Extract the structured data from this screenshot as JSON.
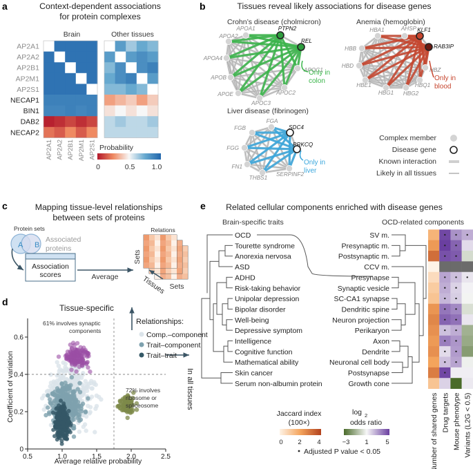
{
  "panels": {
    "a": {
      "label": "a",
      "title": [
        "Context-dependent associations",
        "for protein complexes"
      ],
      "brain_header": "Brain",
      "other_header": "Other tissues",
      "rows": [
        "AP2A1",
        "AP2A2",
        "AP2B1",
        "AP2M1",
        "AP2S1",
        "NECAP1",
        "BIN1",
        "DAB2",
        "NECAP2"
      ],
      "cols": [
        "AP2A1",
        "AP2A2",
        "AP2B1",
        "AP2M1",
        "AP2S1"
      ],
      "legend_title": "Probability",
      "legend_ticks": [
        "0",
        "0.5",
        "1.0"
      ]
    },
    "b": {
      "label": "b",
      "title": "Tissues reveal likely associations for disease genes",
      "legend": {
        "complex_member": "Complex member",
        "disease_gene": "Disease gene",
        "known": "Known interaction",
        "likely": "Likely in all tissues"
      }
    },
    "c": {
      "label": "c",
      "title": [
        "Mapping tissue-level relationships",
        "between sets of proteins"
      ],
      "protein_sets": "Protein sets",
      "node_a": "A",
      "node_b": "B",
      "associated": [
        "Associated",
        "proteins"
      ],
      "box": [
        "Association",
        "scores"
      ],
      "average": "Average",
      "relations": "Relations",
      "sets_v": "Sets",
      "sets_h": "Sets",
      "tissues": "Tissues"
    },
    "d": {
      "label": "d",
      "tissue_specific": "Tissue-specific",
      "annotation_top": [
        "61% involves synaptic",
        "components"
      ],
      "annotation_right": [
        "72% involves",
        "ribosome or",
        "spliceosome"
      ],
      "relationships_title": "Relationships:",
      "series": [
        "Comp.–component",
        "Trait–component",
        "Trait–trait"
      ],
      "x_label": "Average relative probability",
      "y_label": "Coefficient of variation",
      "x_ticks": [
        "0.5",
        "1.0",
        "1.5",
        "2.0",
        "2.5"
      ],
      "y_ticks": [
        "0",
        "0.2",
        "0.4",
        "0.6"
      ],
      "in_all_tissues": "In all tissues"
    },
    "e": {
      "label": "e",
      "title": "Related cellular components enriched with disease genes",
      "left_header": "Brain-specific traits",
      "right_header": "OCD-related components",
      "traits": [
        "OCD",
        "Tourette syndrome",
        "Anorexia nervosa",
        "ASD",
        "ADHD",
        "Risk-taking behavior",
        "Unipolar depression",
        "Bipolar disorder",
        "Well-being",
        "Depressive symptom",
        "Intelligence",
        "Cognitive function",
        "Mathematical ability",
        "Skin cancer",
        "Serum non-albumin protein"
      ],
      "components": [
        "SV m.",
        "Presynaptic m.",
        "Postsynaptic m.",
        "CCV m.",
        "Presynapse",
        "Synaptic vesicle",
        "SC-CA1 synapse",
        "Dendritic spine",
        "Neuron projection",
        "Perikaryon",
        "Axon",
        "Dendrite",
        "Neuronal cell body",
        "Postsynapse",
        "Growth cone"
      ],
      "col_labels": [
        "Number of shared genes",
        "Drug targets",
        "Mouse phenotype",
        "Variants (L2G < 0.5)"
      ],
      "jaccard_title": [
        "Jaccard index",
        "(100×)"
      ],
      "jaccard_ticks": [
        "0",
        "2",
        "4"
      ],
      "odds_title": [
        "log",
        "2",
        "odds ratio"
      ],
      "odds_ticks": [
        "−3",
        "1",
        "5"
      ],
      "note": "Adjusted P value < 0.05"
    }
  },
  "colors": {
    "known": "#cfcfcf",
    "crohn": "#3ab54a",
    "anemia": "#c6452e",
    "liver": "#3aa7dd",
    "comp": "#dbe4ea",
    "trait_comp": "#7ea1ae",
    "trait_trait": "#345866",
    "purple": "#9b4ea5",
    "olive": "#7e8a4a"
  },
  "chart_data": [
    {
      "type": "heatmap",
      "title": "Context-dependent associations for protein complexes",
      "rows": [
        "AP2A1",
        "AP2A2",
        "AP2B1",
        "AP2M1",
        "AP2S1",
        "NECAP1",
        "BIN1",
        "DAB2",
        "NECAP2"
      ],
      "cols": [
        "AP2A1",
        "AP2A2",
        "AP2B1",
        "AP2M1",
        "AP2S1"
      ],
      "groups": [
        "Brain",
        "Other tissues"
      ],
      "values_brain": [
        [
          null,
          0.95,
          0.95,
          0.95,
          0.95
        ],
        [
          0.95,
          null,
          0.95,
          0.95,
          0.95
        ],
        [
          0.95,
          0.95,
          null,
          0.95,
          0.95
        ],
        [
          0.95,
          0.95,
          0.95,
          null,
          0.95
        ],
        [
          0.95,
          0.95,
          0.95,
          0.95,
          null
        ],
        [
          0.9,
          0.9,
          0.9,
          0.9,
          0.9
        ],
        [
          0.88,
          0.88,
          0.9,
          0.88,
          0.9
        ],
        [
          0.02,
          0.05,
          0.1,
          0.05,
          0.1
        ],
        [
          0.2,
          0.15,
          0.25,
          0.15,
          0.25
        ]
      ],
      "values_other": [
        [
          null,
          0.8,
          0.65,
          0.75,
          0.7
        ],
        [
          0.8,
          null,
          0.8,
          0.85,
          0.8
        ],
        [
          0.7,
          0.85,
          null,
          0.85,
          0.9
        ],
        [
          0.75,
          0.85,
          0.9,
          null,
          0.8
        ],
        [
          0.7,
          0.7,
          0.75,
          0.7,
          null
        ],
        [
          0.3,
          0.35,
          0.4,
          0.3,
          0.4
        ],
        [
          0.45,
          0.5,
          0.45,
          0.5,
          0.45
        ],
        [
          0.6,
          0.65,
          0.6,
          0.6,
          0.65
        ],
        [
          0.6,
          0.6,
          0.6,
          0.6,
          0.6
        ]
      ],
      "legend": "Probability",
      "range": [
        0,
        1
      ]
    },
    {
      "type": "scatter",
      "title": "Relationships between sets of proteins",
      "xlabel": "Average relative probability",
      "ylabel": "Coefficient of variation",
      "xlim": [
        0.5,
        2.5
      ],
      "ylim": [
        0,
        0.7
      ],
      "series": [
        {
          "name": "Comp.–component",
          "center": [
            1.1,
            0.3
          ]
        },
        {
          "name": "Trait–component",
          "center": [
            1.05,
            0.25
          ]
        },
        {
          "name": "Trait–trait",
          "center": [
            1.0,
            0.15
          ]
        }
      ],
      "thresholds": {
        "x": 1.75,
        "y": 0.4
      },
      "highlights": [
        {
          "region": "tissue-specific",
          "text": "61% involves synaptic components",
          "center": [
            1.2,
            0.5
          ]
        },
        {
          "region": "in all tissues",
          "text": "72% involves ribosome or spliceosome",
          "center": [
            1.95,
            0.23
          ]
        }
      ]
    },
    {
      "type": "heatmap",
      "title": "Related cellular components enriched with disease genes",
      "rows": [
        "SV m.",
        "Presynaptic m.",
        "Postsynaptic m.",
        "CCV m.",
        "Presynapse",
        "Synaptic vesicle",
        "SC-CA1 synapse",
        "Dendritic spine",
        "Neuron projection",
        "Perikaryon",
        "Axon",
        "Dendrite",
        "Neuronal cell body",
        "Postsynapse",
        "Growth cone"
      ],
      "cols": [
        "Number of shared genes",
        "Drug targets",
        "Mouse phenotype",
        "Variants (L2G < 0.5)"
      ],
      "jaccard": [
        1.6,
        2.2,
        3.1,
        0,
        0.6,
        1.0,
        1.2,
        2.3,
        2.6,
        2.4,
        2.2,
        2.4,
        2.0,
        2.8,
        1.2
      ],
      "log2_odds": [
        [
          4.8,
          3.2,
          2.6
        ],
        [
          5.0,
          4.2,
          1.6
        ],
        [
          4.6,
          4.4,
          0.2
        ],
        [
          null,
          null,
          null
        ],
        [
          2.8,
          2.2,
          1.4
        ],
        [
          2.6,
          1.8,
          1.1
        ],
        [
          2.4,
          1.9,
          0.9
        ],
        [
          3.8,
          3.4,
          0.3
        ],
        [
          4.2,
          3.9,
          1.4
        ],
        [
          2.2,
          2.6,
          -1.0
        ],
        [
          3.6,
          3.1,
          -1.2
        ],
        [
          1.6,
          3.0,
          -1.6
        ],
        [
          2.2,
          2.8,
          0.8
        ],
        [
          4.8,
          1.2,
          1.2
        ],
        [
          1.8,
          -3.0,
          1.3
        ]
      ],
      "significant": [
        [
          true,
          true,
          true
        ],
        [
          true,
          true,
          false
        ],
        [
          true,
          true,
          false
        ],
        [
          false,
          false,
          false
        ],
        [
          true,
          true,
          true
        ],
        [
          true,
          true,
          false
        ],
        [
          true,
          true,
          false
        ],
        [
          true,
          true,
          false
        ],
        [
          true,
          true,
          false
        ],
        [
          true,
          true,
          false
        ],
        [
          true,
          true,
          false
        ],
        [
          true,
          true,
          false
        ],
        [
          true,
          true,
          false
        ],
        [
          true,
          false,
          false
        ],
        [
          false,
          false,
          false
        ]
      ],
      "jaccard_range": [
        0,
        4
      ],
      "odds_range": [
        -3,
        5
      ]
    }
  ]
}
